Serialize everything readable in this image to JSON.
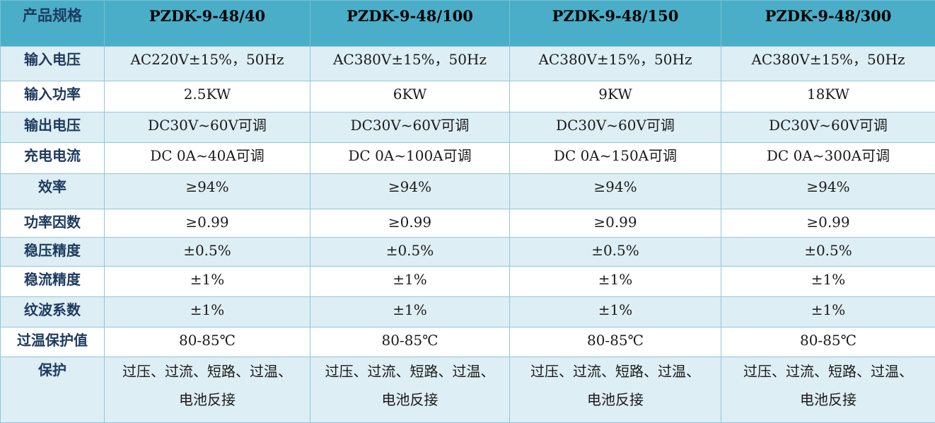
{
  "table": {
    "header": {
      "label": "产品规格",
      "models": [
        "PZDK-9-48/40",
        "PZDK-9-48/100",
        "PZDK-9-48/150",
        "PZDK-9-48/300"
      ]
    },
    "rows": [
      {
        "label": "输入电压",
        "values": [
          "AC220V±15%，50Hz",
          "AC380V±15%，50Hz",
          "AC380V±15%，50Hz",
          "AC380V±15%，50Hz"
        ]
      },
      {
        "label": "输入功率",
        "values": [
          "2.5KW",
          "6KW",
          "9KW",
          "18KW"
        ]
      },
      {
        "label": "输出电压",
        "values": [
          "DC30V~60V可调",
          "DC30V~60V可调",
          "DC30V~60V可调",
          "DC30V~60V可调"
        ]
      },
      {
        "label": "充电电流",
        "values": [
          "DC 0A~40A可调",
          "DC 0A~100A可调",
          "DC 0A~150A可调",
          "DC 0A~300A可调"
        ]
      },
      {
        "label": "效率",
        "values": [
          "≥94%",
          "≥94%",
          "≥94%",
          "≥94%"
        ]
      },
      {
        "label": "功率因数",
        "values": [
          "≥0.99",
          "≥0.99",
          "≥0.99",
          "≥0.99"
        ]
      },
      {
        "label": "稳压精度",
        "values": [
          "±0.5%",
          "±0.5%",
          "±0.5%",
          "±0.5%"
        ]
      },
      {
        "label": "稳流精度",
        "values": [
          "±1%",
          "±1%",
          "±1%",
          "±1%"
        ]
      },
      {
        "label": "纹波系数",
        "values": [
          "±1%",
          "±1%",
          "±1%",
          "±1%"
        ]
      },
      {
        "label": "过温保护值",
        "values": [
          "80-85℃",
          "80-85℃",
          "80-85℃",
          "80-85℃"
        ]
      },
      {
        "label": "保护",
        "values": [
          [
            "过压、过流、短路、过温、",
            "电池反接"
          ],
          [
            "过压、过流、短路、过温、",
            "电池反接"
          ],
          [
            "过压、过流、短路、过温、",
            "电池反接"
          ],
          [
            "过压、过流、短路、过温、",
            "电池反接"
          ]
        ]
      }
    ]
  },
  "colors": {
    "header_bg": "#4aaec8",
    "row_tint": "#ddeef4",
    "row_white": "#ffffff",
    "border": "#8fc9d9",
    "label_text": "#1e3a5f"
  }
}
